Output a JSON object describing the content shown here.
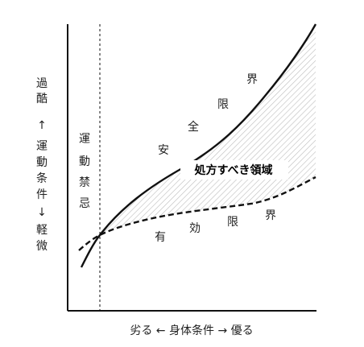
{
  "diagram": {
    "y_axis_label_chars": [
      "過",
      "酷",
      "↑",
      "運",
      "動",
      "条",
      "件",
      "↓",
      "軽",
      "微"
    ],
    "x_axis_label": "劣る ← 身体条件 → 優る",
    "forbidden_zone_chars": [
      "運",
      "動",
      "禁",
      "忌"
    ],
    "region_label": "処方すべき領域",
    "safety_limit_chars": [
      "安",
      "全",
      "限",
      "界"
    ],
    "effective_limit_chars": [
      "有",
      "効",
      "限",
      "界"
    ],
    "colors": {
      "line": "#111111",
      "hatch": "#bdbdbd"
    }
  }
}
